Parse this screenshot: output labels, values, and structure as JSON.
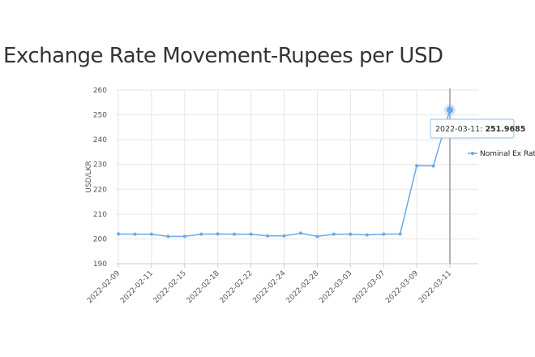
{
  "chart_data": {
    "type": "line",
    "title": "Exchange Rate Movement-Rupees per USD",
    "ylabel": "USD/LKR",
    "xlabel": "",
    "ylim": [
      190,
      260
    ],
    "yticks": [
      190,
      200,
      210,
      220,
      230,
      240,
      250,
      260
    ],
    "grid": true,
    "legend_position": "right",
    "tick_labels": [
      "2022-02-09",
      "2022-02-11",
      "2022-02-15",
      "2022-02-18",
      "2022-02-22",
      "2022-02-24",
      "2022-02-28",
      "2022-03-03",
      "2022-03-07",
      "2022-03-09",
      "2022-03-11"
    ],
    "series": [
      {
        "name": "Nominal Ex Rate",
        "color": "#6aa9e6",
        "values": [
          202.0,
          201.9,
          201.9,
          201.0,
          201.0,
          201.9,
          202.0,
          201.9,
          201.9,
          201.2,
          201.2,
          202.3,
          201.0,
          201.9,
          201.9,
          201.6,
          201.9,
          202.0,
          229.5,
          229.4,
          251.9685
        ]
      }
    ],
    "tooltip": {
      "date": "2022-03-11",
      "value": "251.9685"
    }
  }
}
